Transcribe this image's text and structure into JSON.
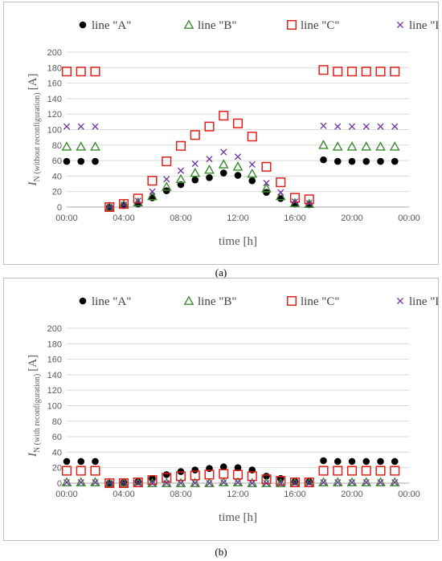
{
  "captions": {
    "a": "(a)",
    "b": "(b)"
  },
  "colors": {
    "A": "#000000",
    "B": "#3a8a2e",
    "C": "#e0201b",
    "D": "#7030a0"
  },
  "chart_data": [
    {
      "type": "scatter",
      "panel": "a",
      "xlabel": "time [h]",
      "ylabel_main": "I",
      "ylabel_sub": "N (without reconfiguration)",
      "ylabel_unit": "[A]",
      "ylim": [
        0,
        200
      ],
      "yticks": [
        0,
        20,
        40,
        60,
        80,
        100,
        120,
        140,
        160,
        180,
        200
      ],
      "xlim": [
        0,
        24
      ],
      "xticks": [
        "00:00",
        "04:00",
        "08:00",
        "12:00",
        "16:00",
        "20:00",
        "00:00"
      ],
      "grid": true,
      "legend_position": "top",
      "series": [
        {
          "name": "line \"A\"",
          "marker": "circle",
          "x": [
            0,
            1,
            2,
            3,
            4,
            5,
            6,
            7,
            8,
            9,
            10,
            11,
            12,
            13,
            14,
            15,
            16,
            17,
            18,
            19,
            20,
            21,
            22,
            23
          ],
          "y": [
            59,
            59,
            59,
            0,
            2,
            4,
            12,
            21,
            29,
            35,
            38,
            44,
            41,
            34,
            19,
            11,
            4,
            3,
            61,
            59,
            59,
            59,
            59,
            59
          ]
        },
        {
          "name": "line \"B\"",
          "marker": "triangle",
          "x": [
            0,
            1,
            2,
            3,
            4,
            5,
            6,
            7,
            8,
            9,
            10,
            11,
            12,
            13,
            14,
            15,
            16,
            17,
            18,
            19,
            20,
            21,
            22,
            23
          ],
          "y": [
            78,
            78,
            78,
            0,
            3,
            6,
            14,
            26,
            36,
            44,
            48,
            55,
            52,
            43,
            24,
            14,
            5,
            4,
            80,
            78,
            78,
            78,
            78,
            78
          ]
        },
        {
          "name": "line \"C\"",
          "marker": "square",
          "x": [
            0,
            1,
            2,
            3,
            4,
            5,
            6,
            7,
            8,
            9,
            10,
            11,
            12,
            13,
            14,
            15,
            16,
            17,
            18,
            19,
            20,
            21,
            22,
            23
          ],
          "y": [
            175,
            175,
            175,
            0,
            4,
            11,
            34,
            59,
            79,
            93,
            104,
            118,
            108,
            91,
            52,
            32,
            12,
            10,
            177,
            175,
            175,
            175,
            175,
            175
          ]
        },
        {
          "name": "line \"D\"",
          "marker": "cross",
          "x": [
            0,
            1,
            2,
            3,
            4,
            5,
            6,
            7,
            8,
            9,
            10,
            11,
            12,
            13,
            14,
            15,
            16,
            17,
            18,
            19,
            20,
            21,
            22,
            23
          ],
          "y": [
            104,
            104,
            104,
            0,
            3,
            8,
            20,
            36,
            47,
            56,
            62,
            71,
            65,
            55,
            31,
            19,
            7,
            5,
            105,
            104,
            104,
            104,
            104,
            104
          ]
        }
      ]
    },
    {
      "type": "scatter",
      "panel": "b",
      "xlabel": "time [h]",
      "ylabel_main": "I",
      "ylabel_sub": "N (with reconfiguration)",
      "ylabel_unit": "[A]",
      "ylim": [
        0,
        200
      ],
      "yticks": [
        0,
        20,
        40,
        60,
        80,
        100,
        120,
        140,
        160,
        180,
        200
      ],
      "xlim": [
        0,
        24
      ],
      "xticks": [
        "00:00",
        "04:00",
        "08:00",
        "12:00",
        "16:00",
        "20:00",
        "00:00"
      ],
      "grid": true,
      "legend_position": "top",
      "series": [
        {
          "name": "line \"A\"",
          "marker": "circle",
          "x": [
            0,
            1,
            2,
            3,
            4,
            5,
            6,
            7,
            8,
            9,
            10,
            11,
            12,
            13,
            14,
            15,
            16,
            17,
            18,
            19,
            20,
            21,
            22,
            23
          ],
          "y": [
            28,
            28,
            28,
            0,
            1,
            2,
            6,
            11,
            15,
            17,
            19,
            21,
            20,
            17,
            9,
            6,
            2,
            2,
            29,
            28,
            28,
            28,
            28,
            28
          ]
        },
        {
          "name": "line \"B\"",
          "marker": "triangle",
          "x": [
            0,
            1,
            2,
            3,
            4,
            5,
            6,
            7,
            8,
            9,
            10,
            11,
            12,
            13,
            14,
            15,
            16,
            17,
            18,
            19,
            20,
            21,
            22,
            23
          ],
          "y": [
            1,
            1,
            1,
            0,
            0,
            0,
            0,
            0,
            0,
            0,
            0,
            1,
            1,
            0,
            0,
            0,
            0,
            0,
            1,
            1,
            1,
            1,
            1,
            1
          ]
        },
        {
          "name": "line \"C\"",
          "marker": "square",
          "x": [
            0,
            1,
            2,
            3,
            4,
            5,
            6,
            7,
            8,
            9,
            10,
            11,
            12,
            13,
            14,
            15,
            16,
            17,
            18,
            19,
            20,
            21,
            22,
            23
          ],
          "y": [
            16,
            16,
            16,
            0,
            0,
            1,
            4,
            7,
            9,
            10,
            11,
            12,
            11,
            9,
            5,
            3,
            1,
            1,
            16,
            16,
            16,
            16,
            16,
            16
          ]
        },
        {
          "name": "line \"D\"",
          "marker": "cross",
          "x": [
            0,
            1,
            2,
            3,
            4,
            5,
            6,
            7,
            8,
            9,
            10,
            11,
            12,
            13,
            14,
            15,
            16,
            17,
            18,
            19,
            20,
            21,
            22,
            23
          ],
          "y": [
            1,
            1,
            1,
            0,
            0,
            0,
            0,
            0,
            0,
            0,
            0,
            1,
            1,
            0,
            0,
            0,
            0,
            0,
            1,
            1,
            1,
            1,
            1,
            1
          ]
        }
      ]
    }
  ]
}
